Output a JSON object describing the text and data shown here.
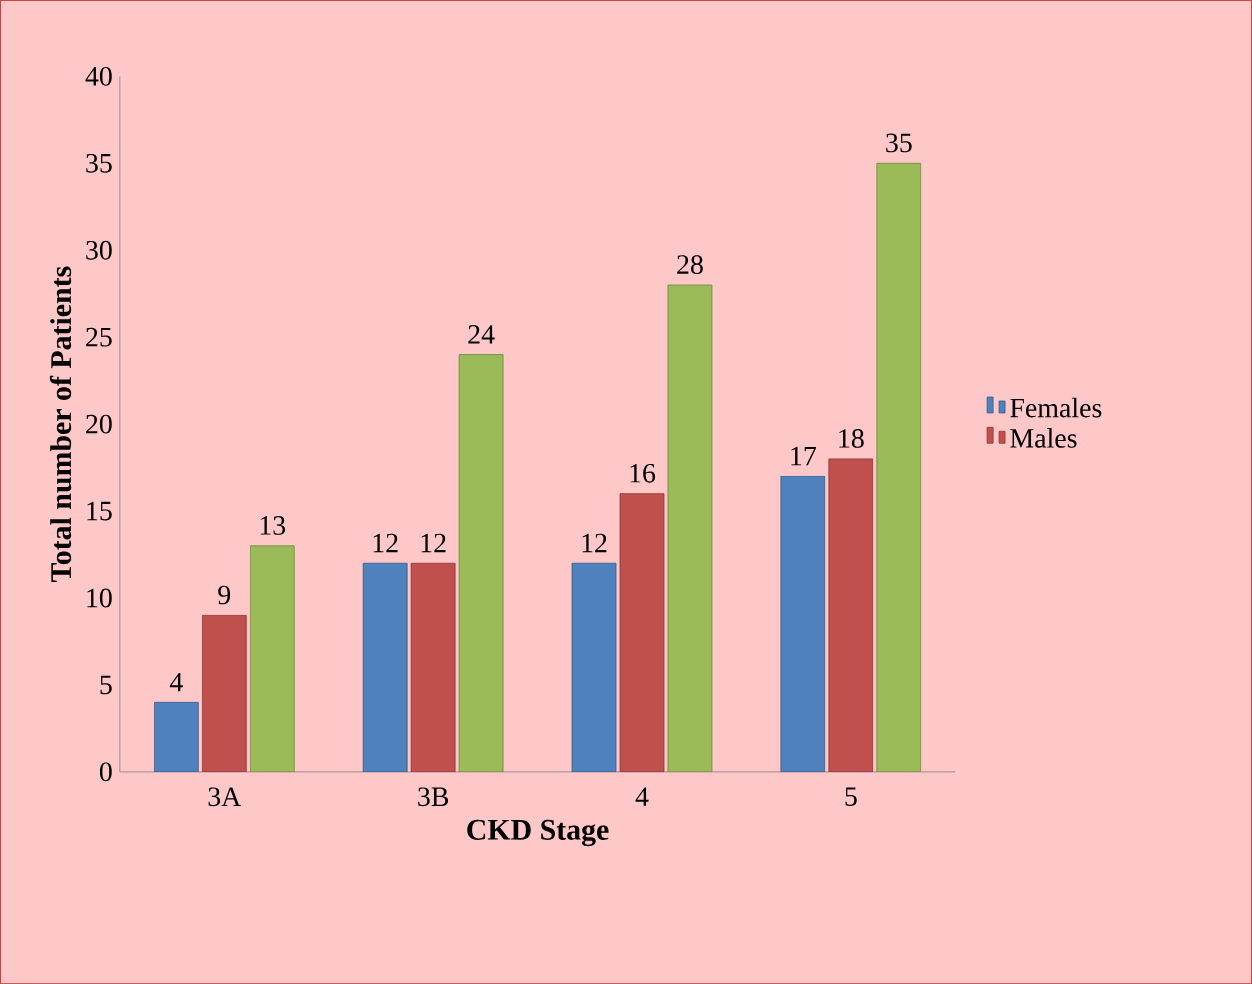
{
  "chart_data": {
    "type": "bar",
    "xlabel": "CKD Stage",
    "ylabel": "Total number of Patients",
    "categories": [
      "3A",
      "3B",
      "4",
      "5"
    ],
    "series": [
      {
        "name": "Females",
        "color": "#4f81bd",
        "values": [
          4,
          12,
          12,
          17
        ]
      },
      {
        "name": "Males",
        "color": "#c0504d",
        "values": [
          9,
          12,
          16,
          18
        ]
      },
      {
        "color": "#9bbb59",
        "values": [
          13,
          24,
          28,
          35
        ]
      }
    ],
    "ylim": [
      0,
      40
    ],
    "yticks": [
      0,
      5,
      10,
      15,
      20,
      25,
      30,
      35,
      40
    ],
    "data_labels": true,
    "grid": false,
    "legend": "right"
  }
}
